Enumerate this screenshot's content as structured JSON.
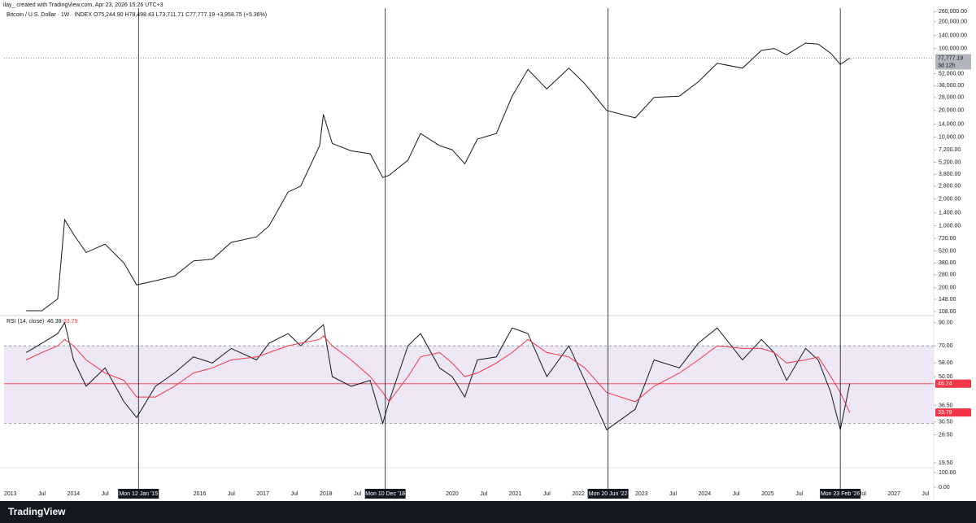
{
  "chart_data": [
    {
      "type": "line",
      "title": "Bitcoin / U.S. Dollar · 1W · INDEX  O75,244.90  H78,498.43  L73,711.71  C77,777.19  +3,958.75 (+5.36%)",
      "subtitle": "ilay_ created with TradingView.com, Apr 23, 2026 15:26 UTC+3",
      "log_scale": true,
      "xlim": [
        2012.9,
        2027.63
      ],
      "ylim": [
        97,
        285000
      ],
      "x": [
        2013.25,
        2013.5,
        2013.75,
        2013.86,
        2014.0,
        2014.2,
        2014.5,
        2014.8,
        2015.0,
        2015.3,
        2015.6,
        2015.9,
        2016.2,
        2016.5,
        2016.9,
        2017.1,
        2017.4,
        2017.6,
        2017.9,
        2017.96,
        2018.1,
        2018.4,
        2018.7,
        2018.9,
        2019.0,
        2019.3,
        2019.5,
        2019.8,
        2020.0,
        2020.2,
        2020.4,
        2020.7,
        2020.95,
        2021.2,
        2021.5,
        2021.85,
        2022.1,
        2022.45,
        2022.9,
        2023.2,
        2023.6,
        2023.9,
        2024.2,
        2024.6,
        2024.9,
        2025.1,
        2025.3,
        2025.6,
        2025.8,
        2026.0,
        2026.15,
        2026.3
      ],
      "series": [
        {
          "name": "BTCUSD",
          "color": "#131722",
          "values": [
            110,
            110,
            150,
            1170,
            800,
            500,
            620,
            380,
            215,
            240,
            270,
            400,
            420,
            650,
            750,
            1000,
            2400,
            2800,
            8000,
            18000,
            8500,
            7000,
            6500,
            3500,
            3700,
            5500,
            11000,
            8000,
            7200,
            5000,
            9500,
            11000,
            29000,
            58000,
            35000,
            60000,
            40000,
            20000,
            16500,
            28000,
            29000,
            42000,
            68000,
            60000,
            95000,
            100000,
            85000,
            115000,
            112000,
            88000,
            66000,
            77777.19
          ]
        }
      ],
      "last_label": "77,777.19",
      "countdown": "3d 12h",
      "vlines": [
        2015.03,
        2018.94,
        2022.47,
        2026.15
      ],
      "xticks": [
        {
          "value": 2013.0,
          "label": "2013"
        },
        {
          "value": 2013.5,
          "label": "Jul"
        },
        {
          "value": 2014.0,
          "label": "2014"
        },
        {
          "value": 2014.5,
          "label": "Jul"
        },
        {
          "value": 2015.03,
          "label": "Mon 12 Jan '15"
        },
        {
          "value": 2016.0,
          "label": "2016"
        },
        {
          "value": 2016.5,
          "label": "Jul"
        },
        {
          "value": 2017.0,
          "label": "2017"
        },
        {
          "value": 2017.5,
          "label": "Jul"
        },
        {
          "value": 2018.0,
          "label": "2018"
        },
        {
          "value": 2018.5,
          "label": "Jul"
        },
        {
          "value": 2018.94,
          "label": "Mon 10 Dec '18"
        },
        {
          "value": 2020.0,
          "label": "2020"
        },
        {
          "value": 2020.5,
          "label": "Jul"
        },
        {
          "value": 2021.0,
          "label": "2021"
        },
        {
          "value": 2021.5,
          "label": "Jul"
        },
        {
          "value": 2022.0,
          "label": "2022"
        },
        {
          "value": 2022.47,
          "label": "Mon 20 Jun '22"
        },
        {
          "value": 2023.0,
          "label": "2023"
        },
        {
          "value": 2023.5,
          "label": "Jul"
        },
        {
          "value": 2024.0,
          "label": "2024"
        },
        {
          "value": 2024.5,
          "label": "Jul"
        },
        {
          "value": 2025.0,
          "label": "2025"
        },
        {
          "value": 2025.5,
          "label": "Jul"
        },
        {
          "value": 2026.15,
          "label": "Mon 23 Feb '26"
        },
        {
          "value": 2026.5,
          "label": "Jul"
        },
        {
          "value": 2027.0,
          "label": "2027"
        },
        {
          "value": 2027.5,
          "label": "Jul"
        }
      ],
      "yticks": [
        {
          "value": 260000,
          "label": "260,000.00"
        },
        {
          "value": 200000,
          "label": "200,000.00"
        },
        {
          "value": 140000,
          "label": "140,000.00"
        },
        {
          "value": 100000,
          "label": "100,000.00"
        },
        {
          "value": 52000,
          "label": "52,000.00"
        },
        {
          "value": 38000,
          "label": "38,000.00"
        },
        {
          "value": 28000,
          "label": "28,000.00"
        },
        {
          "value": 20000,
          "label": "20,000.00"
        },
        {
          "value": 14000,
          "label": "14,000.00"
        },
        {
          "value": 10000,
          "label": "10,000.00"
        },
        {
          "value": 7200,
          "label": "7,200.00"
        },
        {
          "value": 5200,
          "label": "5,200.00"
        },
        {
          "value": 3800,
          "label": "3,800.00"
        },
        {
          "value": 2800,
          "label": "2,800.00"
        },
        {
          "value": 2000,
          "label": "2,000.00"
        },
        {
          "value": 1400,
          "label": "1,400.00"
        },
        {
          "value": 1000,
          "label": "1,000.00"
        },
        {
          "value": 720,
          "label": "720.00"
        },
        {
          "value": 520,
          "label": "520.00"
        },
        {
          "value": 380,
          "label": "380.00"
        },
        {
          "value": 280,
          "label": "280.00"
        },
        {
          "value": 200,
          "label": "200.00"
        },
        {
          "value": 148,
          "label": "148.00"
        },
        {
          "value": 108,
          "label": "108.00"
        }
      ]
    },
    {
      "type": "line",
      "title": "RSI (14, close)",
      "log_scale": true,
      "ylim": [
        18.5,
        97.3
      ],
      "x": [
        2013.25,
        2013.5,
        2013.75,
        2013.86,
        2014.0,
        2014.2,
        2014.5,
        2014.8,
        2015.0,
        2015.3,
        2015.6,
        2015.9,
        2016.2,
        2016.5,
        2016.9,
        2017.1,
        2017.4,
        2017.6,
        2017.9,
        2017.96,
        2018.1,
        2018.4,
        2018.7,
        2018.9,
        2019.0,
        2019.3,
        2019.5,
        2019.8,
        2020.0,
        2020.2,
        2020.4,
        2020.7,
        2020.95,
        2021.2,
        2021.5,
        2021.85,
        2022.1,
        2022.45,
        2022.9,
        2023.2,
        2023.6,
        2023.9,
        2024.2,
        2024.6,
        2024.9,
        2025.1,
        2025.3,
        2025.6,
        2025.8,
        2026.0,
        2026.15,
        2026.3
      ],
      "series": [
        {
          "name": "RSI",
          "color": "#131722",
          "values": [
            65,
            72,
            80,
            90,
            60,
            45,
            55,
            38,
            32,
            45,
            52,
            62,
            58,
            68,
            60,
            72,
            80,
            70,
            85,
            88,
            50,
            45,
            48,
            30,
            38,
            70,
            80,
            55,
            50,
            40,
            60,
            62,
            85,
            80,
            50,
            70,
            48,
            28,
            35,
            60,
            55,
            72,
            85,
            60,
            75,
            65,
            48,
            68,
            60,
            42,
            28,
            46.38
          ]
        },
        {
          "name": "RSI MA",
          "color": "#f23645",
          "values": [
            60,
            65,
            70,
            75,
            70,
            60,
            52,
            48,
            40,
            40,
            45,
            52,
            55,
            60,
            62,
            65,
            70,
            72,
            75,
            78,
            70,
            60,
            50,
            42,
            38,
            50,
            62,
            65,
            58,
            50,
            52,
            58,
            65,
            75,
            65,
            62,
            55,
            42,
            38,
            45,
            52,
            60,
            70,
            68,
            68,
            65,
            58,
            60,
            62,
            50,
            42,
            33.79
          ]
        }
      ],
      "bands": [
        30,
        70
      ],
      "band_color": "#ede7f6",
      "hline": 46.24,
      "yticks": [
        {
          "value": 90,
          "label": "90.00"
        },
        {
          "value": 70,
          "label": "70.00"
        },
        {
          "value": 58,
          "label": "58.00"
        },
        {
          "value": 50,
          "label": "50.00"
        },
        {
          "value": 36.5,
          "label": "36.50"
        },
        {
          "value": 30.5,
          "label": "30.50"
        },
        {
          "value": 26.5,
          "label": "26.50"
        },
        {
          "value": 19.5,
          "label": "19.50"
        }
      ]
    },
    {
      "type": "line",
      "ylim": [
        -17,
        133
      ],
      "series": [],
      "yticks": [
        {
          "value": 100,
          "label": "100.00"
        },
        {
          "value": 0,
          "label": "0.00"
        }
      ]
    }
  ],
  "footer": "TradingView"
}
